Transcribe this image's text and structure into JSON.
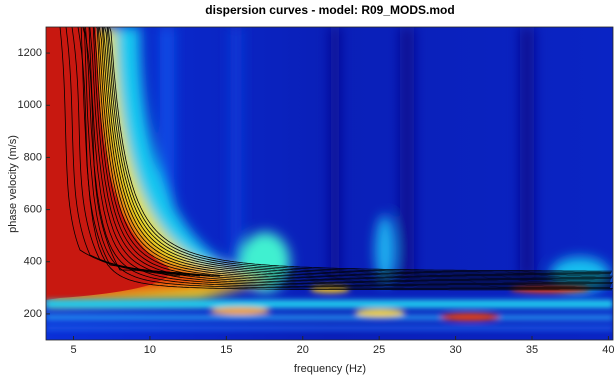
{
  "chart_data": {
    "type": "heatmap",
    "title": "dispersion curves - model: R09_MODS.mod",
    "x_label": "frequency (Hz)",
    "y_label": "phase velocity (m/s)",
    "xlim": [
      3.2,
      40.3
    ],
    "xticks": [
      5,
      10,
      15,
      20,
      25,
      30,
      35,
      40
    ],
    "ylim": [
      100,
      1300
    ],
    "yticks": [
      200,
      400,
      600,
      800,
      1000,
      1200
    ]
  }
}
